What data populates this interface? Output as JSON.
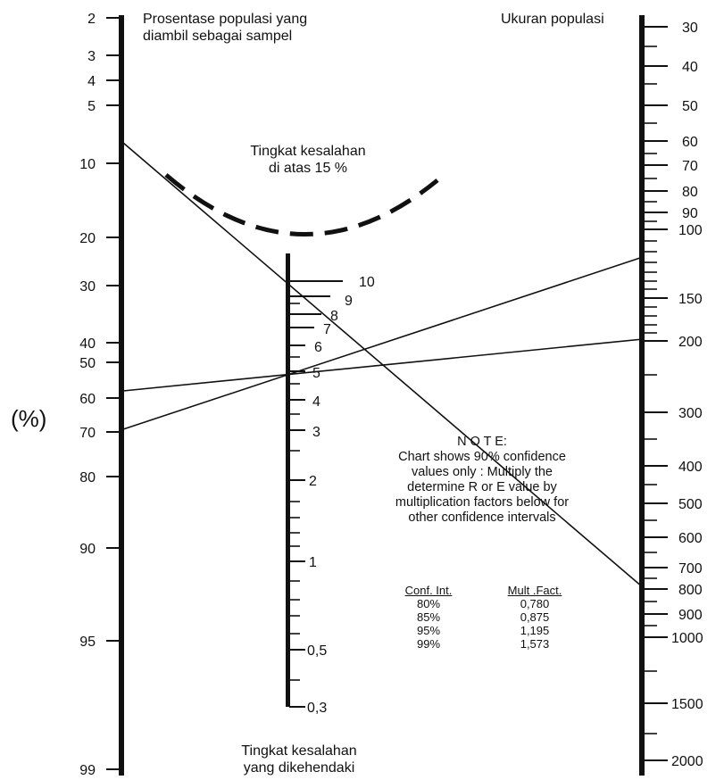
{
  "left_scale": {
    "title_line1": "Prosentase populasi yang",
    "title_line2": "diambil sebagai sampel",
    "unit": "(%)",
    "ticks": [
      "2",
      "3",
      "4",
      "5",
      "10",
      "20",
      "30",
      "40",
      "50",
      "60",
      "70",
      "80",
      "90",
      "95",
      "99"
    ]
  },
  "right_scale": {
    "title": "Ukuran populasi",
    "ticks": [
      "30",
      "40",
      "50",
      "60",
      "70",
      "80",
      "90",
      "100",
      "150",
      "200",
      "300",
      "400",
      "500",
      "600",
      "700",
      "800",
      "900",
      "1000",
      "1500",
      "2000"
    ]
  },
  "middle_scale": {
    "ticks": [
      "10",
      "9",
      "8",
      "7",
      "6",
      "5",
      "4",
      "3",
      "2",
      "1",
      "0,5",
      "0,3"
    ],
    "bottom_label_line1": "Tingkat kesalahan",
    "bottom_label_line2": "yang dikehendaki"
  },
  "arc_label": {
    "line1": "Tingkat kesalahan",
    "line2": "di atas 15 %"
  },
  "note": {
    "heading": "N O T E:",
    "lines": [
      "Chart shows 90% confidence",
      "values only : Multiply the",
      "determine R or E value by",
      "multiplication factors below for",
      "other confidence intervals"
    ]
  },
  "factor_table": {
    "headers": [
      "Conf. Int.",
      "Mult .Fact."
    ],
    "rows": [
      [
        "80%",
        "0,780"
      ],
      [
        "85%",
        "0,875"
      ],
      [
        "95%",
        "1,195"
      ],
      [
        "99%",
        "1,573"
      ]
    ]
  }
}
